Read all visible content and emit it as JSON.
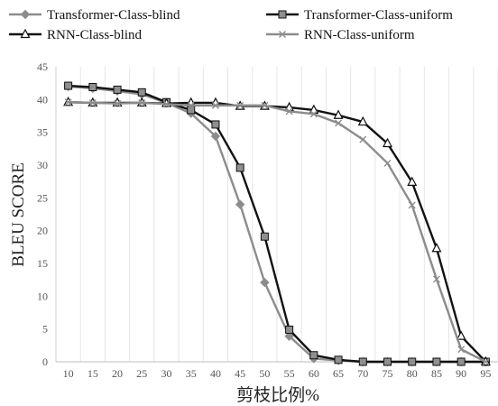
{
  "chart_data": {
    "type": "line",
    "xlabel": "剪枝比例%",
    "ylabel": "BLEU SCORE",
    "x": [
      10,
      15,
      20,
      25,
      30,
      35,
      40,
      45,
      50,
      55,
      60,
      65,
      70,
      75,
      80,
      85,
      90,
      95
    ],
    "ylim": [
      0,
      45
    ],
    "yticks": [
      0,
      5,
      10,
      15,
      20,
      25,
      30,
      35,
      40,
      45
    ],
    "grid": "vertical",
    "legend_position": "top",
    "series": [
      {
        "name": "Transformer-Class-blind",
        "marker": "diamond",
        "color": "#8c8c8c",
        "values": [
          42.0,
          41.7,
          41.3,
          40.8,
          39.5,
          37.9,
          34.4,
          24.0,
          12.1,
          3.9,
          0.5,
          0.2,
          0.0,
          0.0,
          0.0,
          0.0,
          0.0,
          0.0
        ]
      },
      {
        "name": "Transformer-Class-uniform",
        "marker": "square",
        "color": "#111111",
        "values": [
          42.1,
          41.9,
          41.5,
          41.1,
          39.6,
          38.4,
          36.2,
          29.6,
          19.1,
          4.9,
          1.0,
          0.3,
          0.0,
          0.0,
          0.0,
          0.0,
          0.0,
          0.0
        ]
      },
      {
        "name": "RNN-Class-blind",
        "marker": "triangle",
        "color": "#111111",
        "values": [
          39.6,
          39.5,
          39.5,
          39.5,
          39.4,
          39.5,
          39.5,
          39.0,
          39.0,
          38.8,
          38.4,
          37.6,
          36.6,
          33.3,
          27.4,
          17.3,
          3.9,
          0.0
        ]
      },
      {
        "name": "RNN-Class-uniform",
        "marker": "x",
        "color": "#8c8c8c",
        "values": [
          39.6,
          39.5,
          39.4,
          39.5,
          39.3,
          39.1,
          39.1,
          39.1,
          39.1,
          38.2,
          37.8,
          36.4,
          33.9,
          30.3,
          23.9,
          12.6,
          1.9,
          0.0
        ]
      }
    ]
  }
}
